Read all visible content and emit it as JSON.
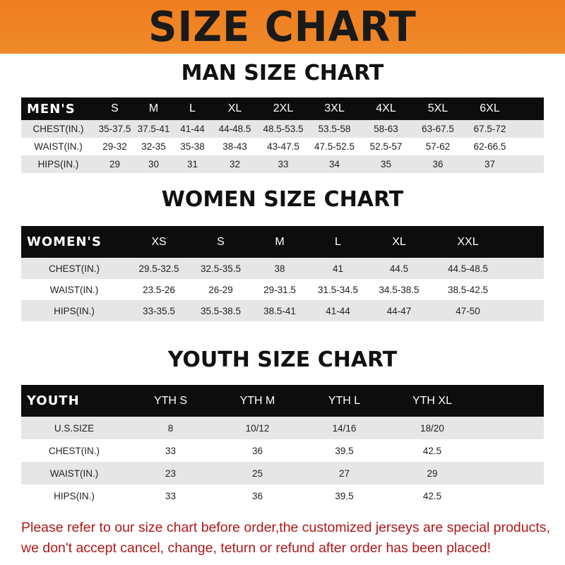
{
  "banner_title": "SIZE CHART",
  "men": {
    "title": "MAN SIZE CHART",
    "header": [
      "MEN'S",
      "S",
      "M",
      "L",
      "XL",
      "2XL",
      "3XL",
      "4XL",
      "5XL",
      "6XL"
    ],
    "rows": [
      [
        "CHEST(IN.)",
        "35-37.5",
        "37.5-41",
        "41-44",
        "44-48.5",
        "48.5-53.5",
        "53.5-58",
        "58-63",
        "63-67.5",
        "67.5-72"
      ],
      [
        "WAIST(IN.)",
        "29-32",
        "32-35",
        "35-38",
        "38-43",
        "43-47.5",
        "47.5-52.5",
        "52.5-57",
        "57-62",
        "62-66.5"
      ],
      [
        "HIPS(IN.)",
        "29",
        "30",
        "31",
        "32",
        "33",
        "34",
        "35",
        "36",
        "37"
      ]
    ]
  },
  "women": {
    "title": "WOMEN SIZE CHART",
    "header": [
      "WOMEN'S",
      "XS",
      "S",
      "M",
      "L",
      "XL",
      "XXL"
    ],
    "rows": [
      [
        "CHEST(IN.)",
        "29.5-32.5",
        "32.5-35.5",
        "38",
        "41",
        "44.5",
        "44.5-48.5"
      ],
      [
        "WAIST(IN.)",
        "23.5-26",
        "26-29",
        "29-31.5",
        "31.5-34.5",
        "34.5-38.5",
        "38.5-42.5"
      ],
      [
        "HIPS(IN.)",
        "33-35.5",
        "35.5-38.5",
        "38.5-41",
        "41-44",
        "44-47",
        "47-50"
      ]
    ]
  },
  "youth": {
    "title": "YOUTH SIZE CHART",
    "header": [
      "YOUTH",
      "YTH S",
      "YTH M",
      "YTH L",
      "YTH XL"
    ],
    "rows": [
      [
        "U.S.SIZE",
        "8",
        "10/12",
        "14/16",
        "18/20"
      ],
      [
        "CHEST(IN.)",
        "33",
        "36",
        "39.5",
        "42.5"
      ],
      [
        "WAIST(IN.)",
        "23",
        "25",
        "27",
        "29"
      ],
      [
        "HIPS(IN.)",
        "33",
        "36",
        "39.5",
        "42.5"
      ]
    ]
  },
  "footer": [
    "Please refer to our size chart before order,the customized jerseys are special products,",
    "we don't accept cancel, change, teturn or refund after order has been placed!"
  ],
  "colors": {
    "banner": "#f07d1e",
    "header_bg": "#0d0d0d",
    "footer_text": "#b01818"
  }
}
